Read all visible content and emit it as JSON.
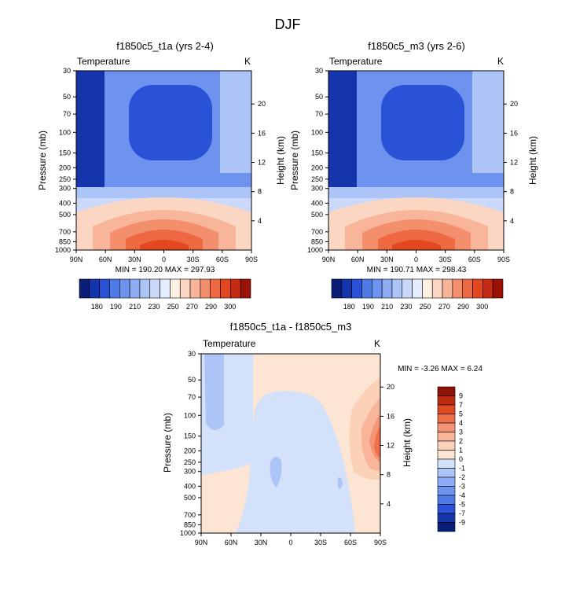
{
  "figure_title": "DJF",
  "palettes": {
    "absolute": [
      "#0a1e78",
      "#1535ad",
      "#2a52d6",
      "#4f7be6",
      "#6e93ef",
      "#8fabf3",
      "#adc4f7",
      "#cad9fa",
      "#e4edfd",
      "#fff0e4",
      "#fbd6c3",
      "#f8b59a",
      "#f38f6c",
      "#ee6941",
      "#e2471f",
      "#c52a12",
      "#9a1207"
    ],
    "difference": [
      "#0a1e78",
      "#1535ad",
      "#2a52d6",
      "#4f7be6",
      "#6e93ef",
      "#8fabf3",
      "#adc4f7",
      "#d3e1fb",
      "#fde5d4",
      "#fbd2b8",
      "#f8b599",
      "#f39474",
      "#ee6f48",
      "#e04a22",
      "#bd2b10",
      "#8e1205"
    ],
    "diff_neg_bg": "#d3e1fb",
    "diff_pos_bg": "#fde5d4",
    "abs_cold": "#1535ad",
    "abs_mid": "#6e93ef"
  },
  "chart_data": [
    {
      "type": "contour",
      "title": "f1850c5_t1a (yrs 2-4)",
      "left_label": "Temperature",
      "right_label": "K",
      "ylabel": "Pressure (mb)",
      "ylabel_right": "Height (km)",
      "xticks": [
        "90N",
        "60N",
        "30N",
        "0",
        "30S",
        "60S",
        "90S"
      ],
      "yticks": [
        "30",
        "50",
        "70",
        "100",
        "150",
        "200",
        "250",
        "300",
        "400",
        "500",
        "700",
        "850",
        "1000"
      ],
      "yticks_right": [
        "20",
        "16",
        "12",
        "8",
        "4"
      ],
      "x_range": [
        90,
        -90
      ],
      "p_range": [
        30,
        1000
      ],
      "stats": "MIN = 190.20   MAX = 297.93",
      "colorbar_labels": [
        "180",
        "190",
        "210",
        "230",
        "250",
        "270",
        "290",
        "300"
      ]
    },
    {
      "type": "contour",
      "title": "f1850c5_m3 (yrs 2-6)",
      "left_label": "Temperature",
      "right_label": "K",
      "ylabel": "Pressure (mb)",
      "ylabel_right": "Height (km)",
      "xticks": [
        "90N",
        "60N",
        "30N",
        "0",
        "30S",
        "60S",
        "90S"
      ],
      "yticks": [
        "30",
        "50",
        "70",
        "100",
        "150",
        "200",
        "250",
        "300",
        "400",
        "500",
        "700",
        "850",
        "1000"
      ],
      "yticks_right": [
        "20",
        "16",
        "12",
        "8",
        "4"
      ],
      "x_range": [
        90,
        -90
      ],
      "p_range": [
        30,
        1000
      ],
      "stats": "MIN = 190.71   MAX = 298.43",
      "colorbar_labels": [
        "180",
        "190",
        "210",
        "230",
        "250",
        "270",
        "290",
        "300"
      ]
    },
    {
      "type": "contour",
      "title": "f1850c5_t1a - f1850c5_m3",
      "left_label": "Temperature",
      "right_label": "K",
      "ylabel": "Pressure (mb)",
      "ylabel_right": "Height (km)",
      "xticks": [
        "90N",
        "60N",
        "30N",
        "0",
        "30S",
        "60S",
        "90S"
      ],
      "yticks": [
        "30",
        "50",
        "70",
        "100",
        "150",
        "200",
        "250",
        "300",
        "400",
        "500",
        "700",
        "850",
        "1000"
      ],
      "yticks_right": [
        "20",
        "16",
        "12",
        "8",
        "4"
      ],
      "x_range": [
        90,
        -90
      ],
      "p_range": [
        30,
        1000
      ],
      "stats": "MIN =  -3.26   MAX =  6.24",
      "colorbar_labels": [
        "9",
        "7",
        "5",
        "4",
        "3",
        "2",
        "1",
        "0",
        "-1",
        "-2",
        "-3",
        "-4",
        "-5",
        "-7",
        "-9"
      ]
    }
  ]
}
